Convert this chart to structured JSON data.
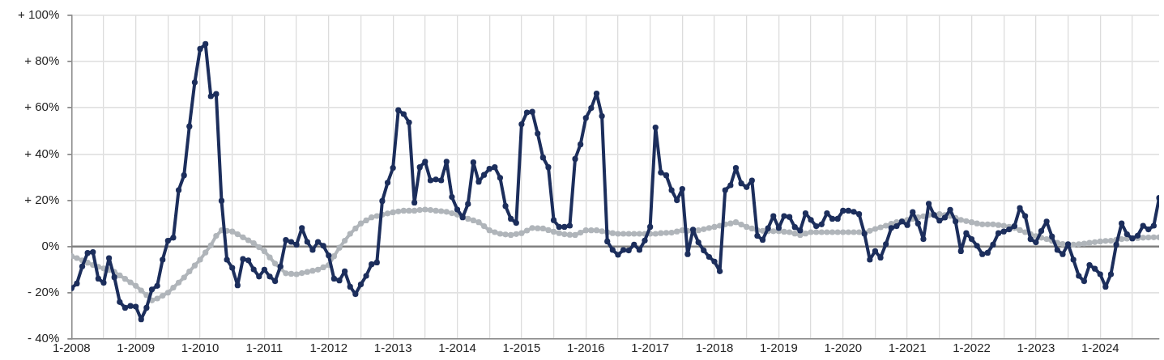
{
  "chart_data": {
    "type": "line",
    "x": [
      "2008-01",
      "2008-02",
      "2008-03",
      "2008-04",
      "2008-05",
      "2008-06",
      "2008-07",
      "2008-08",
      "2008-09",
      "2008-10",
      "2008-11",
      "2008-12",
      "2009-01",
      "2009-02",
      "2009-03",
      "2009-04",
      "2009-05",
      "2009-06",
      "2009-07",
      "2009-08",
      "2009-09",
      "2009-10",
      "2009-11",
      "2009-12",
      "2010-01",
      "2010-02",
      "2010-03",
      "2010-04",
      "2010-05",
      "2010-06",
      "2010-07",
      "2010-08",
      "2010-09",
      "2010-10",
      "2010-11",
      "2010-12",
      "2011-01",
      "2011-02",
      "2011-03",
      "2011-04",
      "2011-05",
      "2011-06",
      "2011-07",
      "2011-08",
      "2011-09",
      "2011-10",
      "2011-11",
      "2011-12",
      "2012-01",
      "2012-02",
      "2012-03",
      "2012-04",
      "2012-05",
      "2012-06",
      "2012-07",
      "2012-08",
      "2012-09",
      "2012-10",
      "2012-11",
      "2012-12",
      "2013-01",
      "2013-02",
      "2013-03",
      "2013-04",
      "2013-05",
      "2013-06",
      "2013-07",
      "2013-08",
      "2013-09",
      "2013-10",
      "2013-11",
      "2013-12",
      "2014-01",
      "2014-02",
      "2014-03",
      "2014-04",
      "2014-05",
      "2014-06",
      "2014-07",
      "2014-08",
      "2014-09",
      "2014-10",
      "2014-11",
      "2014-12",
      "2015-01",
      "2015-02",
      "2015-03",
      "2015-04",
      "2015-05",
      "2015-06",
      "2015-07",
      "2015-08",
      "2015-09",
      "2015-10",
      "2015-11",
      "2015-12",
      "2016-01",
      "2016-02",
      "2016-03",
      "2016-04",
      "2016-05",
      "2016-06",
      "2016-07",
      "2016-08",
      "2016-09",
      "2016-10",
      "2016-11",
      "2016-12",
      "2017-01",
      "2017-02",
      "2017-03",
      "2017-04",
      "2017-05",
      "2017-06",
      "2017-07",
      "2017-08",
      "2017-09",
      "2017-10",
      "2017-11",
      "2017-12",
      "2018-01",
      "2018-02",
      "2018-03",
      "2018-04",
      "2018-05",
      "2018-06",
      "2018-07",
      "2018-08",
      "2018-09",
      "2018-10",
      "2018-11",
      "2018-12",
      "2019-01",
      "2019-02",
      "2019-03",
      "2019-04",
      "2019-05",
      "2019-06",
      "2019-07",
      "2019-08",
      "2019-09",
      "2019-10",
      "2019-11",
      "2019-12",
      "2020-01",
      "2020-02",
      "2020-03",
      "2020-04",
      "2020-05",
      "2020-06",
      "2020-07",
      "2020-08",
      "2020-09",
      "2020-10",
      "2020-11",
      "2020-12",
      "2021-01",
      "2021-02",
      "2021-03",
      "2021-04",
      "2021-05",
      "2021-06",
      "2021-07",
      "2021-08",
      "2021-09",
      "2021-10",
      "2021-11",
      "2021-12",
      "2022-01",
      "2022-02",
      "2022-03",
      "2022-04",
      "2022-05",
      "2022-06",
      "2022-07",
      "2022-08",
      "2022-09",
      "2022-10",
      "2022-11",
      "2022-12",
      "2023-01",
      "2023-02",
      "2023-03",
      "2023-04",
      "2023-05",
      "2023-06",
      "2023-07",
      "2023-08",
      "2023-09",
      "2023-10",
      "2023-11",
      "2023-12",
      "2024-01",
      "2024-02",
      "2024-03",
      "2024-04",
      "2024-05",
      "2024-06",
      "2024-07",
      "2024-08",
      "2024-09",
      "2024-10",
      "2024-11",
      "2024-12"
    ],
    "series": [
      {
        "color": "#1c2e5c",
        "values": [
          -18,
          -16,
          -8.6,
          -2.8,
          -2.4,
          -13.9,
          -15.7,
          -5,
          -13.3,
          -24,
          -26.5,
          -25.7,
          -26,
          -31.5,
          -26.5,
          -18.6,
          -17,
          -5.7,
          2.5,
          3.8,
          24.4,
          30.8,
          52,
          71,
          85.5,
          87.6,
          65,
          66,
          19.8,
          -5.7,
          -9.2,
          -16.8,
          -5.4,
          -6,
          -9.9,
          -13,
          -10,
          -13,
          -15,
          -8.6,
          2.8,
          2,
          0.8,
          8,
          2,
          -1.5,
          2,
          0.3,
          -3.9,
          -13.9,
          -14.7,
          -10.7,
          -17.4,
          -20.6,
          -16.4,
          -12.7,
          -7.7,
          -6.9,
          19.7,
          27.6,
          34,
          59,
          57.3,
          53.7,
          19,
          34.3,
          36.7,
          28.6,
          29,
          28.6,
          36.7,
          21.4,
          16,
          12.6,
          18.4,
          36.4,
          28,
          31,
          33.6,
          34.3,
          29.7,
          17.5,
          12,
          10.2,
          52.9,
          58,
          58.3,
          48.9,
          38.5,
          34.3,
          11.4,
          8.5,
          8.5,
          9,
          37.9,
          44.2,
          55.6,
          59.9,
          66.2,
          56.4,
          2.2,
          -1.5,
          -3.6,
          -1.5,
          -1.7,
          0.8,
          -1.5,
          2.6,
          8.5,
          51.5,
          32,
          30.8,
          24.4,
          20,
          24.9,
          -3.3,
          7.3,
          1.8,
          -1.7,
          -4.5,
          -6.5,
          -10.7,
          24.4,
          26.5,
          34,
          27.3,
          25.7,
          28.6,
          4.6,
          2.9,
          7.9,
          13.2,
          8,
          13.2,
          12.8,
          8.4,
          6.9,
          14.4,
          11.5,
          8.8,
          9.6,
          14.4,
          12,
          12,
          15.5,
          15.5,
          15,
          14,
          5.5,
          -5.7,
          -2,
          -4.8,
          1,
          8,
          8.8,
          10.8,
          9.3,
          14.9,
          10,
          3.2,
          18.5,
          13.6,
          11.2,
          12.5,
          15.9,
          10.8,
          -2,
          5.8,
          3.2,
          0.3,
          -3.3,
          -2.7,
          0.8,
          5.8,
          6.5,
          7.4,
          8.8,
          16.7,
          13.2,
          3.2,
          1.8,
          6.7,
          10.8,
          4.3,
          -1.5,
          -3.3,
          1,
          -5.7,
          -12.7,
          -15,
          -8,
          -9.6,
          -12,
          -17.4,
          -12,
          0.8,
          10,
          5.3,
          3.5,
          4.7,
          9,
          7.4,
          9,
          21
        ]
      },
      {
        "color": "#b0b5ba",
        "values": [
          -4.2,
          -5,
          -6,
          -7,
          -8,
          -8.8,
          -9.5,
          -10.2,
          -11,
          -12.5,
          -14,
          -15.5,
          -17,
          -19,
          -21,
          -23.3,
          -22.5,
          -21.3,
          -20,
          -17.8,
          -15.6,
          -13.4,
          -10.8,
          -8.2,
          -5.7,
          -2.6,
          0.5,
          4.6,
          7,
          6.8,
          6.5,
          5.3,
          4,
          2.7,
          1.4,
          -0.3,
          -2,
          -4.7,
          -7.4,
          -9.5,
          -11.6,
          -11.8,
          -12,
          -11.5,
          -11,
          -10.5,
          -10,
          -9,
          -8,
          -4.2,
          -0.5,
          2.5,
          5.5,
          7.8,
          10,
          11.3,
          12.6,
          13.2,
          13.8,
          14.3,
          14.8,
          15.2,
          15.5,
          15.5,
          15.5,
          15.8,
          16,
          15.8,
          15.5,
          15.3,
          15,
          14.4,
          13.8,
          12.9,
          12,
          11.3,
          10.5,
          8.8,
          7,
          6.2,
          5.5,
          5.2,
          5,
          5.4,
          5.8,
          6.9,
          8,
          7.9,
          7.8,
          7.1,
          6.4,
          5.8,
          5.3,
          5.1,
          5,
          6,
          7,
          7,
          7,
          6.6,
          6.2,
          5.8,
          5.5,
          5.5,
          5.5,
          5.5,
          5.5,
          5.5,
          5.5,
          5.5,
          5.8,
          5.9,
          6,
          6.5,
          7,
          6.8,
          6.6,
          7,
          7.5,
          8,
          8.5,
          9,
          9.6,
          10,
          10.5,
          9.5,
          8.5,
          7.8,
          7,
          6.8,
          6.6,
          6.6,
          6.6,
          6.4,
          6.2,
          5.6,
          5,
          5.6,
          6.2,
          6.2,
          6.2,
          6.2,
          6.2,
          6.2,
          6.2,
          6.2,
          6.2,
          6.2,
          6,
          6.8,
          7.6,
          8.3,
          9,
          9.8,
          10.5,
          11,
          11.5,
          12,
          12.6,
          13.1,
          13.6,
          13.8,
          14,
          13.6,
          13.2,
          12.4,
          11.5,
          11,
          10.5,
          10,
          9.6,
          9.6,
          9.6,
          9.3,
          9,
          8.5,
          8,
          7.1,
          6.2,
          5.4,
          4.5,
          3.8,
          3.2,
          2.4,
          1.6,
          1.1,
          0.6,
          0.8,
          1,
          1.3,
          1.6,
          1.9,
          2.2,
          2.4,
          2.5,
          2.9,
          3.2,
          3.4,
          3.5,
          3.7,
          3.8,
          3.9,
          4,
          4
        ]
      }
    ],
    "xlim": [
      "2008-01",
      "2024-12"
    ],
    "xticks": [
      {
        "value": "2008-01",
        "label": "1-2008"
      },
      {
        "value": "2008-07",
        "label": null
      },
      {
        "value": "2009-01",
        "label": "1-2009"
      },
      {
        "value": "2009-07",
        "label": null
      },
      {
        "value": "2010-01",
        "label": "1-2010"
      },
      {
        "value": "2010-07",
        "label": null
      },
      {
        "value": "2011-01",
        "label": "1-2011"
      },
      {
        "value": "2011-07",
        "label": null
      },
      {
        "value": "2012-01",
        "label": "1-2012"
      },
      {
        "value": "2012-07",
        "label": null
      },
      {
        "value": "2013-01",
        "label": "1-2013"
      },
      {
        "value": "2013-07",
        "label": null
      },
      {
        "value": "2014-01",
        "label": "1-2014"
      },
      {
        "value": "2014-07",
        "label": null
      },
      {
        "value": "2015-01",
        "label": "1-2015"
      },
      {
        "value": "2015-07",
        "label": null
      },
      {
        "value": "2016-01",
        "label": "1-2016"
      },
      {
        "value": "2016-07",
        "label": null
      },
      {
        "value": "2017-01",
        "label": "1-2017"
      },
      {
        "value": "2017-07",
        "label": null
      },
      {
        "value": "2018-01",
        "label": "1-2018"
      },
      {
        "value": "2018-07",
        "label": null
      },
      {
        "value": "2019-01",
        "label": "1-2019"
      },
      {
        "value": "2019-07",
        "label": null
      },
      {
        "value": "2020-01",
        "label": "1-2020"
      },
      {
        "value": "2020-07",
        "label": null
      },
      {
        "value": "2021-01",
        "label": "1-2021"
      },
      {
        "value": "2021-07",
        "label": null
      },
      {
        "value": "2022-01",
        "label": "1-2022"
      },
      {
        "value": "2022-07",
        "label": null
      },
      {
        "value": "2023-01",
        "label": "1-2023"
      },
      {
        "value": "2023-07",
        "label": null
      },
      {
        "value": "2024-01",
        "label": "1-2024"
      },
      {
        "value": "2024-07",
        "label": null
      }
    ],
    "ylim": [
      -40,
      100
    ],
    "yticks": [
      {
        "value": -40,
        "label": "- 40%"
      },
      {
        "value": -20,
        "label": "- 20%"
      },
      {
        "value": 0,
        "label": "0%"
      },
      {
        "value": 20,
        "label": "+ 20%"
      },
      {
        "value": 40,
        "label": "+ 40%"
      },
      {
        "value": 60,
        "label": "+ 60%"
      },
      {
        "value": 80,
        "label": "+ 80%"
      },
      {
        "value": 100,
        "label": "+ 100%"
      }
    ],
    "ref_lines": [
      {
        "axis": "y",
        "value": 0,
        "color": "#808080"
      }
    ],
    "grid": true,
    "legend": false,
    "marker": "circle",
    "line_style": "solid"
  }
}
